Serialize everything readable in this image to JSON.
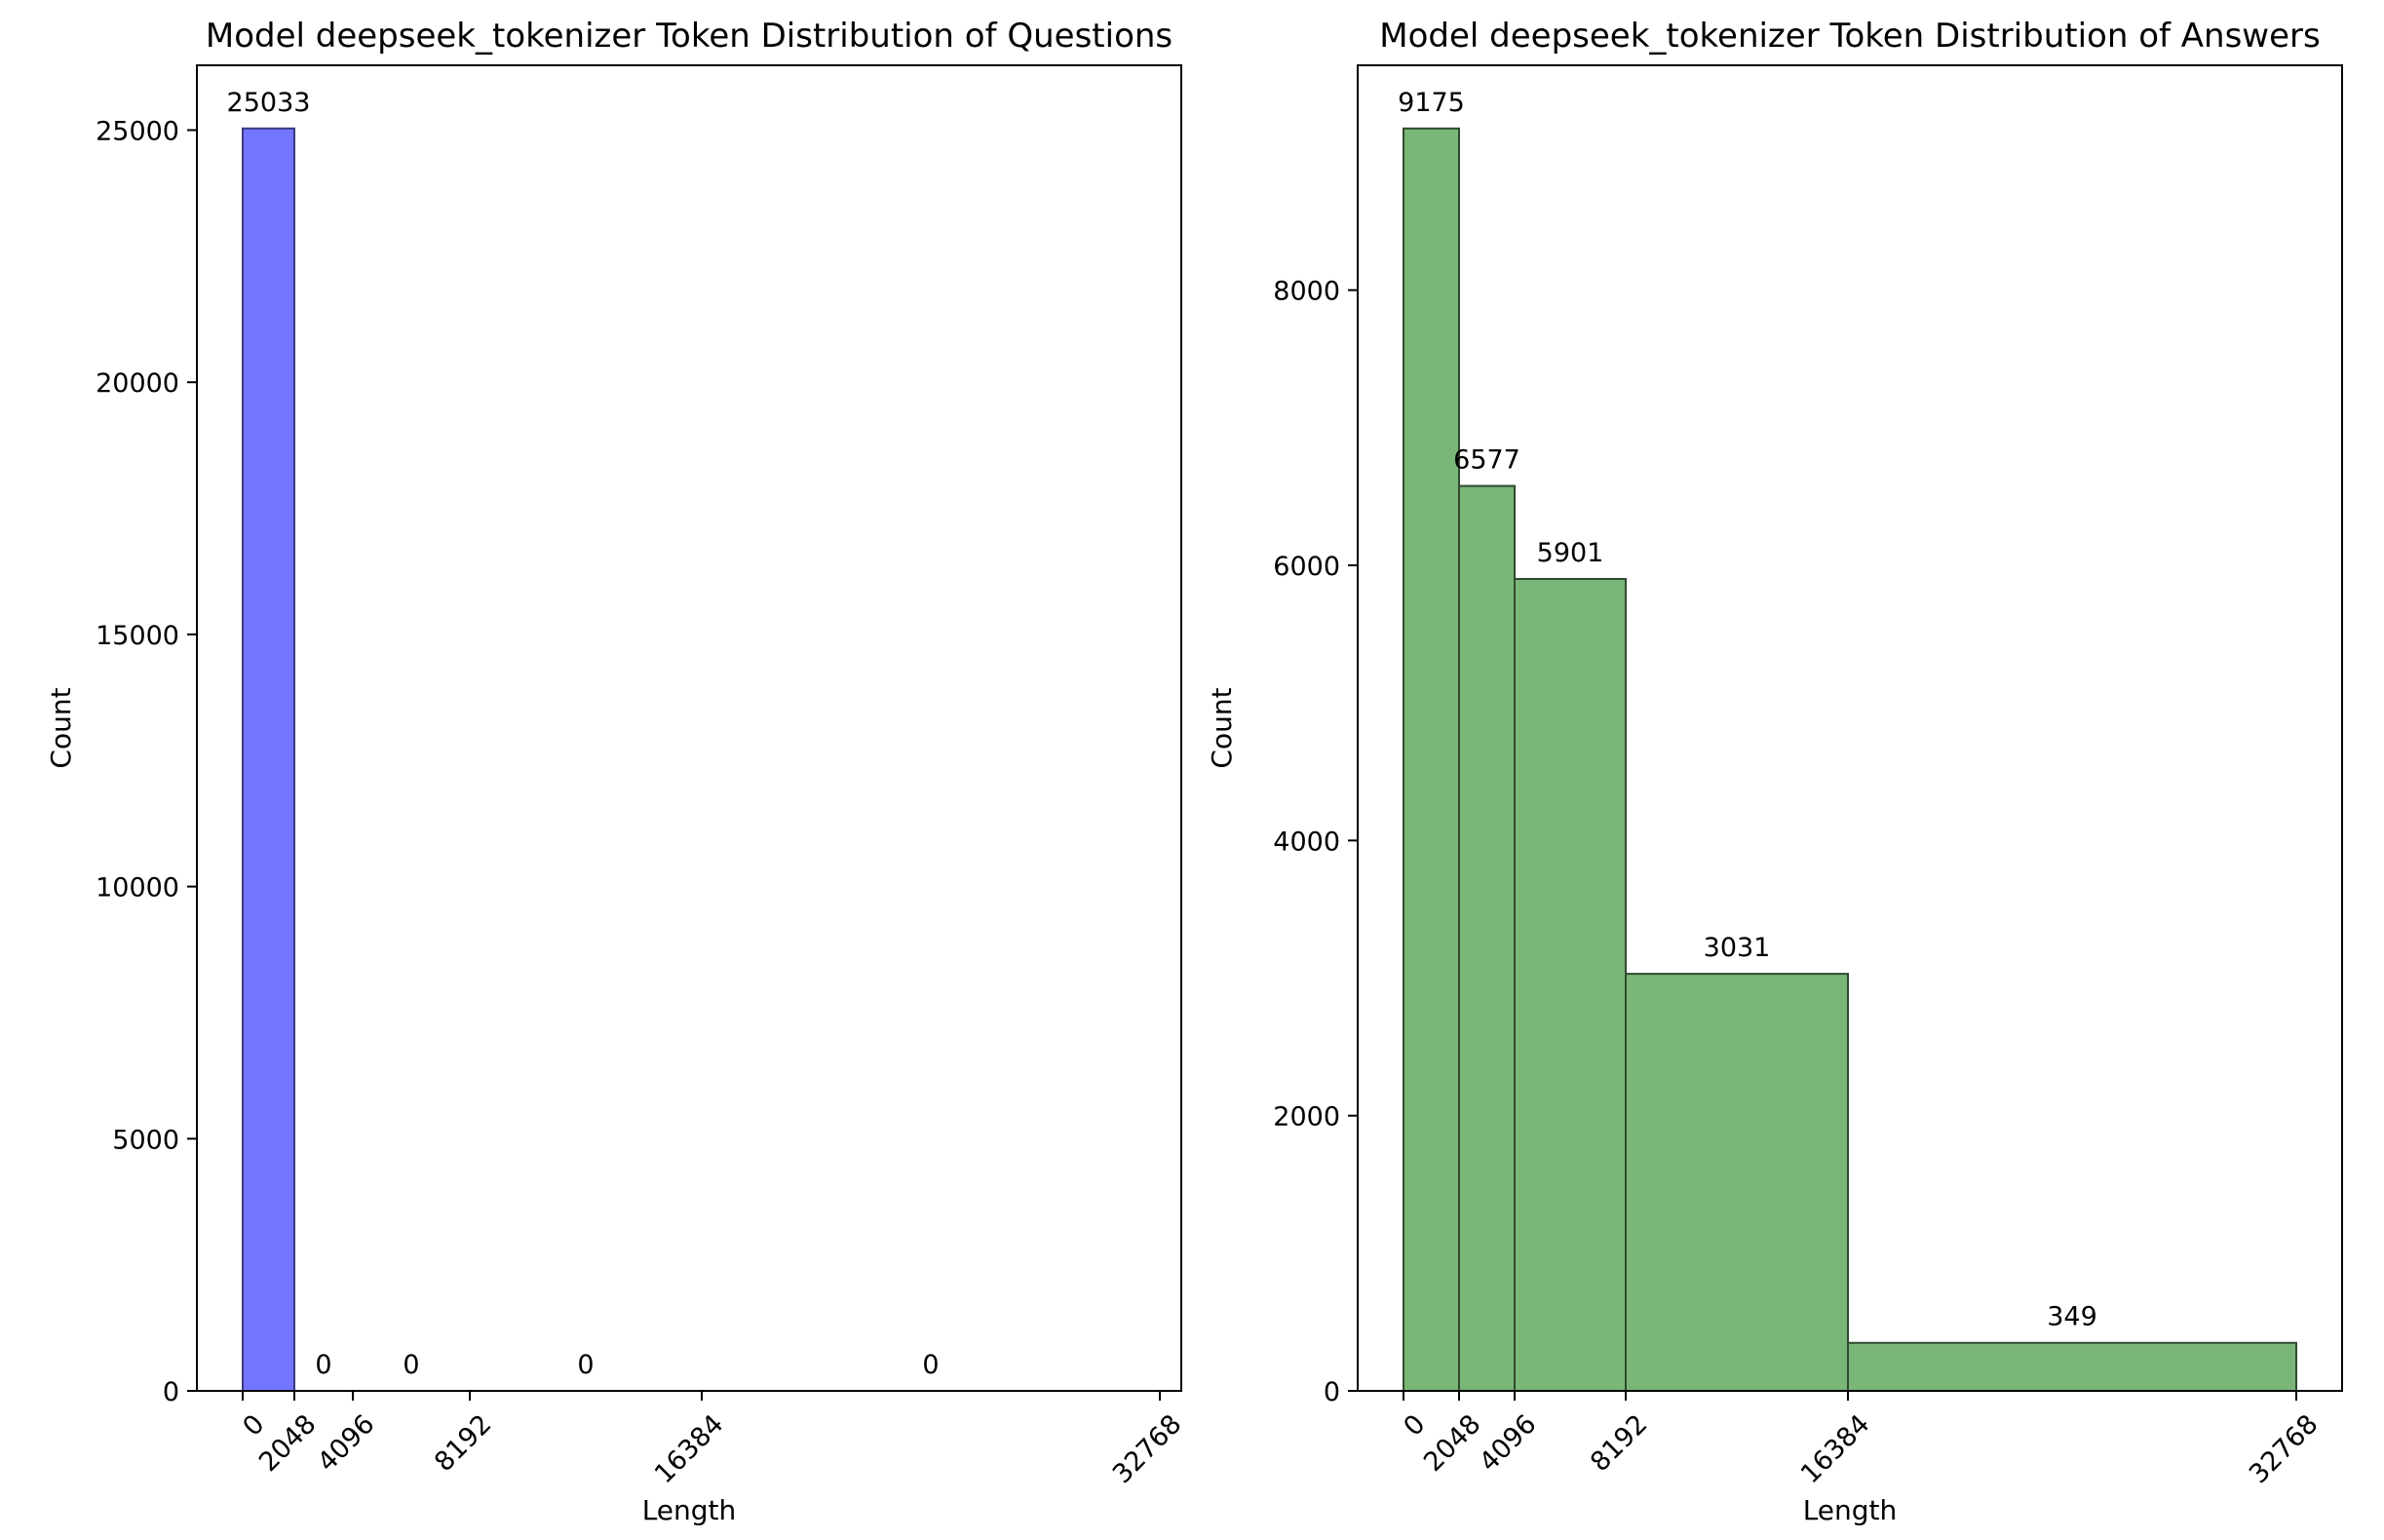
{
  "chart_data": [
    {
      "type": "bar",
      "title": "Model deepseek_tokenizer Token Distribution of Questions",
      "xlabel": "Length",
      "ylabel": "Count",
      "bin_edges": [
        0,
        2048,
        4096,
        8192,
        16384,
        32768
      ],
      "values": [
        25033,
        0,
        0,
        0,
        0
      ],
      "data_labels": [
        "25033",
        "0",
        "0",
        "0",
        "0"
      ],
      "xticks": [
        0,
        2048,
        4096,
        8192,
        16384,
        32768
      ],
      "xtick_labels": [
        "0",
        "2048",
        "4096",
        "8192",
        "16384",
        "32768"
      ],
      "yticks": [
        0,
        5000,
        10000,
        15000,
        20000,
        25000
      ],
      "ytick_labels": [
        "0",
        "5000",
        "10000",
        "15000",
        "20000",
        "25000"
      ],
      "ylim": [
        0,
        26285
      ],
      "bar_color": "#7375ff",
      "bar_edge_color": "#3a3b80",
      "grid": false,
      "legend": "none"
    },
    {
      "type": "bar",
      "title": "Model deepseek_tokenizer Token Distribution of Answers",
      "xlabel": "Length",
      "ylabel": "Count",
      "bin_edges": [
        0,
        2048,
        4096,
        8192,
        16384,
        32768
      ],
      "values": [
        9175,
        6577,
        5901,
        3031,
        349
      ],
      "data_labels": [
        "9175",
        "6577",
        "5901",
        "3031",
        "349"
      ],
      "xticks": [
        0,
        2048,
        4096,
        8192,
        16384,
        32768
      ],
      "xtick_labels": [
        "0",
        "2048",
        "4096",
        "8192",
        "16384",
        "32768"
      ],
      "yticks": [
        0,
        2000,
        4000,
        6000,
        8000
      ],
      "ytick_labels": [
        "0",
        "2000",
        "4000",
        "6000",
        "8000"
      ],
      "ylim": [
        0,
        9634
      ],
      "bar_color": "#7ab677",
      "bar_edge_color": "#2f4a2e",
      "grid": false,
      "legend": "none"
    }
  ]
}
